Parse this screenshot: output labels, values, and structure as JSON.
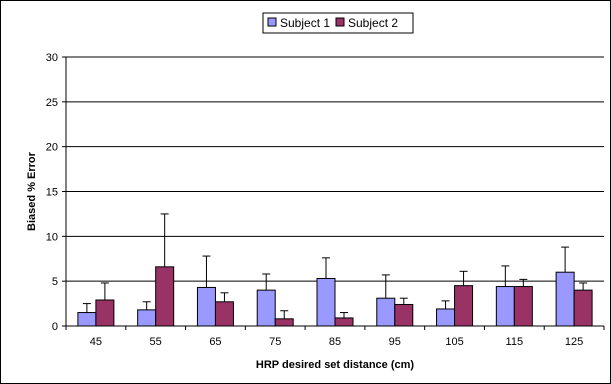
{
  "chart_data": {
    "type": "bar",
    "xlabel": "HRP desired set distance (cm)",
    "ylabel": "Biased % Error",
    "ylim": [
      0,
      30
    ],
    "yticks": [
      0,
      5,
      10,
      15,
      20,
      25,
      30
    ],
    "grid": true,
    "legend_position": "top",
    "categories": [
      "45",
      "55",
      "65",
      "75",
      "85",
      "95",
      "105",
      "115",
      "125"
    ],
    "series": [
      {
        "name": "Subject 1",
        "color": "#9999FF",
        "values": [
          1.5,
          1.8,
          4.3,
          4.0,
          5.3,
          3.1,
          1.9,
          4.4,
          6.0
        ],
        "error": [
          1.0,
          0.9,
          3.5,
          1.8,
          2.3,
          2.6,
          0.9,
          2.3,
          2.8
        ]
      },
      {
        "name": "Subject 2",
        "color": "#993366",
        "values": [
          2.9,
          6.6,
          2.7,
          0.8,
          0.9,
          2.4,
          4.5,
          4.4,
          4.0
        ],
        "error": [
          1.9,
          5.9,
          1.0,
          0.9,
          0.6,
          0.7,
          1.6,
          0.8,
          0.8
        ]
      }
    ]
  }
}
